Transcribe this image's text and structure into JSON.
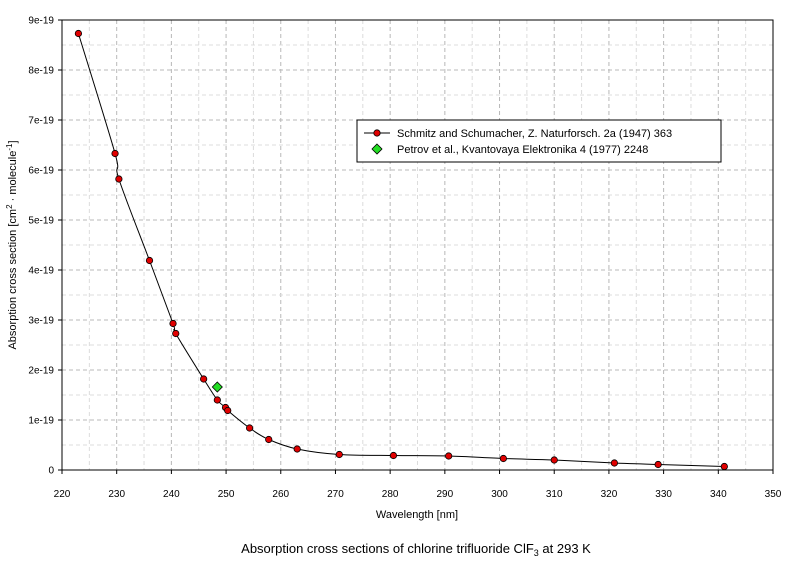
{
  "chart_data": {
    "type": "scatter",
    "caption_main": "Absorption cross sections of chlorine trifluoride ClF",
    "caption_sub": "3",
    "caption_tail": " at 293 K",
    "xlabel": "Wavelength [nm]",
    "ylabel_parts": {
      "p1": "Absorption cross section [cm",
      "p2": "2",
      "p3": " · molecule",
      "p4": "-1",
      "p5": "]"
    },
    "xlim": [
      220,
      350
    ],
    "ylim": [
      0,
      9e-19
    ],
    "xticks": [
      220,
      230,
      240,
      250,
      260,
      270,
      280,
      290,
      300,
      310,
      320,
      330,
      340,
      350
    ],
    "yticks": [
      0,
      1e-19,
      2e-19,
      3e-19,
      4e-19,
      5e-19,
      6e-19,
      7e-19,
      8e-19,
      9e-19
    ],
    "yticklabels": [
      "0",
      "1e-19",
      "2e-19",
      "3e-19",
      "4e-19",
      "5e-19",
      "6e-19",
      "7e-19",
      "8e-19",
      "9e-19"
    ],
    "grid": true,
    "legend_position": "top-right",
    "series": [
      {
        "name": "Schmitz and Schumacher, Z. Naturforsch. 2a (1947) 363",
        "marker": "circle",
        "color": "#e00000",
        "line": true,
        "x": [
          223,
          229.7,
          230.4,
          236,
          240.3,
          240.8,
          245.9,
          248.4,
          249.9,
          250.3,
          254.3,
          257.8,
          263,
          270.7,
          280.6,
          290.7,
          300.7,
          310,
          321,
          329,
          341.1
        ],
        "y": [
          8.73e-19,
          6.33e-19,
          5.82e-19,
          4.19e-19,
          2.93e-19,
          2.73e-19,
          1.82e-19,
          1.4e-19,
          1.25e-19,
          1.19e-19,
          8.4e-20,
          6.1e-20,
          4.2e-20,
          3.1e-20,
          2.9e-20,
          2.8e-20,
          2.3e-20,
          2e-20,
          1.4e-20,
          1.1e-20,
          7e-21
        ]
      },
      {
        "name": "Petrov et al., Kvantovaya Elektronika 4 (1977) 2248",
        "marker": "diamond",
        "color": "#22dd22",
        "line": false,
        "x": [
          248.4
        ],
        "y": [
          1.66e-19
        ]
      }
    ]
  }
}
